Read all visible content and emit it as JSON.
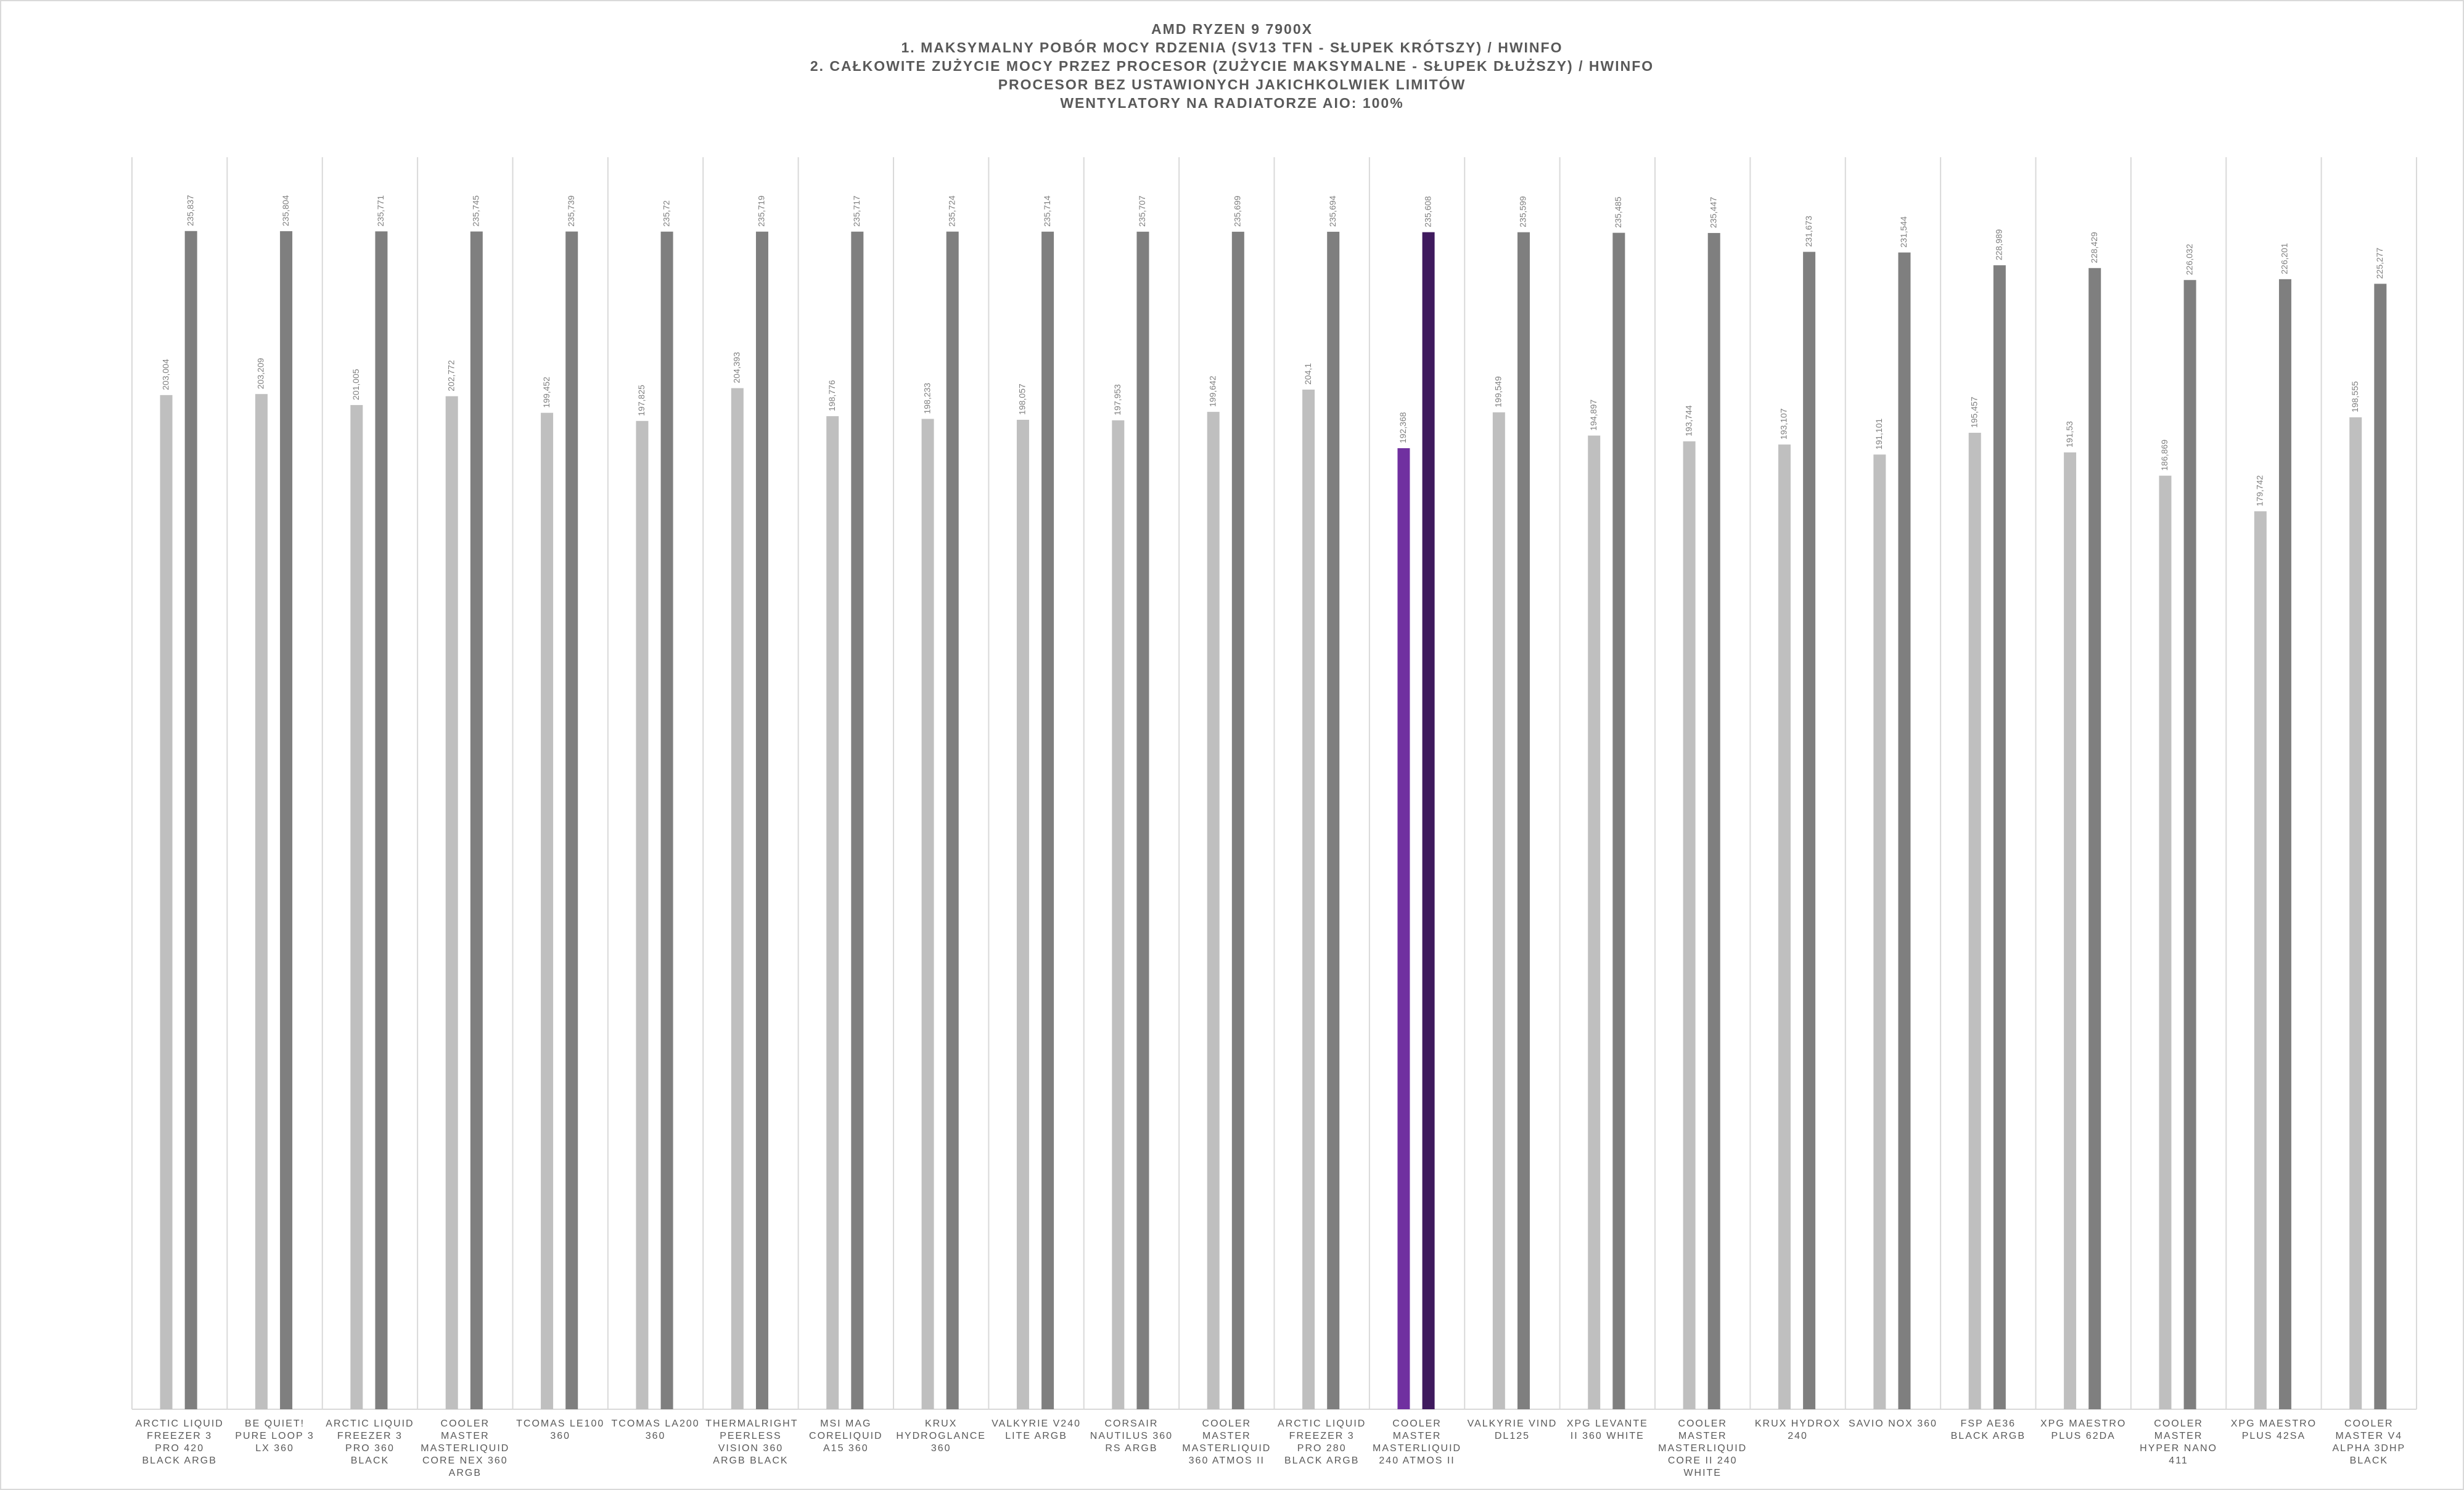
{
  "chart_data": {
    "type": "bar",
    "title": [
      "AMD RYZEN 9 7900X",
      "1. MAKSYMALNY POBÓR MOCY RDZENIA (SV13 TFN - SŁUPEK KRÓTSZY) / HWINFO",
      "2. CAŁKOWITE ZUŻYCIE MOCY PRZEZ PROCESOR (ZUŻYCIE MAKSYMALNE - SŁUPEK DŁUŻSZY) / HWINFO",
      "PROCESOR BEZ USTAWIONYCH JAKICHKOLWIEK LIMITÓW",
      "WENTYLATORY NA RADIATORZE AIO: 100%"
    ],
    "categories": [
      "ARCTIC LIQUID FREEZER 3 PRO 420 BLACK ARGB",
      "BE QUIET! PURE LOOP 3 LX 360",
      "ARCTIC LIQUID FREEZER 3 PRO 360 BLACK",
      "COOLER MASTER MASTERLIQUID CORE NEX 360 ARGB",
      "TCOMAS LE100 360",
      "TCOMAS LA200 360",
      "THERMALRIGHT PEERLESS VISION 360 ARGB BLACK",
      "MSI MAG CORELIQUID A15 360",
      "KRUX HYDROGLANCE 360",
      "VALKYRIE V240 LITE ARGB",
      "CORSAIR NAUTILUS 360 RS ARGB",
      "COOLER MASTER MASTERLIQUID 360 ATMOS II",
      "ARCTIC LIQUID FREEZER 3 PRO 280 BLACK ARGB",
      "COOLER MASTER MASTERLIQUID 240 ATMOS II",
      "VALKYRIE VIND DL125",
      "XPG LEVANTE II 360 WHITE",
      "COOLER MASTER MASTERLIQUID CORE II 240 WHITE",
      "KRUX HYDROX 240",
      "SAVIO NOX 360",
      "FSP AE36 BLACK ARGB",
      "XPG MAESTRO PLUS 62DA",
      "COOLER MASTER HYPER NANO 411",
      "XPG MAESTRO PLUS 42SA",
      "COOLER MASTER V4 ALPHA 3DHP BLACK"
    ],
    "series": [
      {
        "values": [
          203.004,
          203.209,
          201.005,
          202.772,
          199.452,
          197.825,
          204.393,
          198.776,
          198.233,
          198.057,
          197.953,
          199.642,
          204.1,
          192.368,
          199.549,
          194.897,
          193.744,
          193.107,
          191.101,
          195.457,
          191.53,
          186.869,
          179.742,
          198.555
        ],
        "value_labels": [
          "203,004",
          "203,209",
          "201,005",
          "202,772",
          "199,452",
          "197,825",
          "204,393",
          "198,776",
          "198,233",
          "198,057",
          "197,953",
          "199,642",
          "204,1",
          "192,368",
          "199,549",
          "194,897",
          "193,744",
          "193,107",
          "191,101",
          "195,457",
          "191,53",
          "186,869",
          "179,742",
          "198,555"
        ],
        "colors": [
          "#bfbfbf",
          "#bfbfbf",
          "#bfbfbf",
          "#bfbfbf",
          "#bfbfbf",
          "#bfbfbf",
          "#bfbfbf",
          "#bfbfbf",
          "#bfbfbf",
          "#bfbfbf",
          "#bfbfbf",
          "#bfbfbf",
          "#bfbfbf",
          "#7030a0",
          "#bfbfbf",
          "#bfbfbf",
          "#bfbfbf",
          "#bfbfbf",
          "#bfbfbf",
          "#bfbfbf",
          "#bfbfbf",
          "#bfbfbf",
          "#bfbfbf",
          "#bfbfbf"
        ]
      },
      {
        "values": [
          235.837,
          235.804,
          235.771,
          235.745,
          235.739,
          235.72,
          235.719,
          235.717,
          235.724,
          235.714,
          235.707,
          235.699,
          235.694,
          235.608,
          235.599,
          235.485,
          235.447,
          231.673,
          231.544,
          228.989,
          228.429,
          226.032,
          226.201,
          225.277
        ],
        "value_labels": [
          "235,837",
          "235,804",
          "235,771",
          "235,745",
          "235,739",
          "235,72",
          "235,719",
          "235,717",
          "235,724",
          "235,714",
          "235,707",
          "235,699",
          "235,694",
          "235,608",
          "235,599",
          "235,485",
          "235,447",
          "231,673",
          "231,544",
          "228,989",
          "228,429",
          "226,032",
          "226,201",
          "225,277"
        ],
        "colors": [
          "#7f7f7f",
          "#7f7f7f",
          "#7f7f7f",
          "#7f7f7f",
          "#7f7f7f",
          "#7f7f7f",
          "#7f7f7f",
          "#7f7f7f",
          "#7f7f7f",
          "#7f7f7f",
          "#7f7f7f",
          "#7f7f7f",
          "#7f7f7f",
          "#3f1a5e",
          "#7f7f7f",
          "#7f7f7f",
          "#7f7f7f",
          "#7f7f7f",
          "#7f7f7f",
          "#7f7f7f",
          "#7f7f7f",
          "#7f7f7f",
          "#7f7f7f",
          "#7f7f7f"
        ]
      }
    ],
    "ylim": [
      0,
      250
    ]
  }
}
